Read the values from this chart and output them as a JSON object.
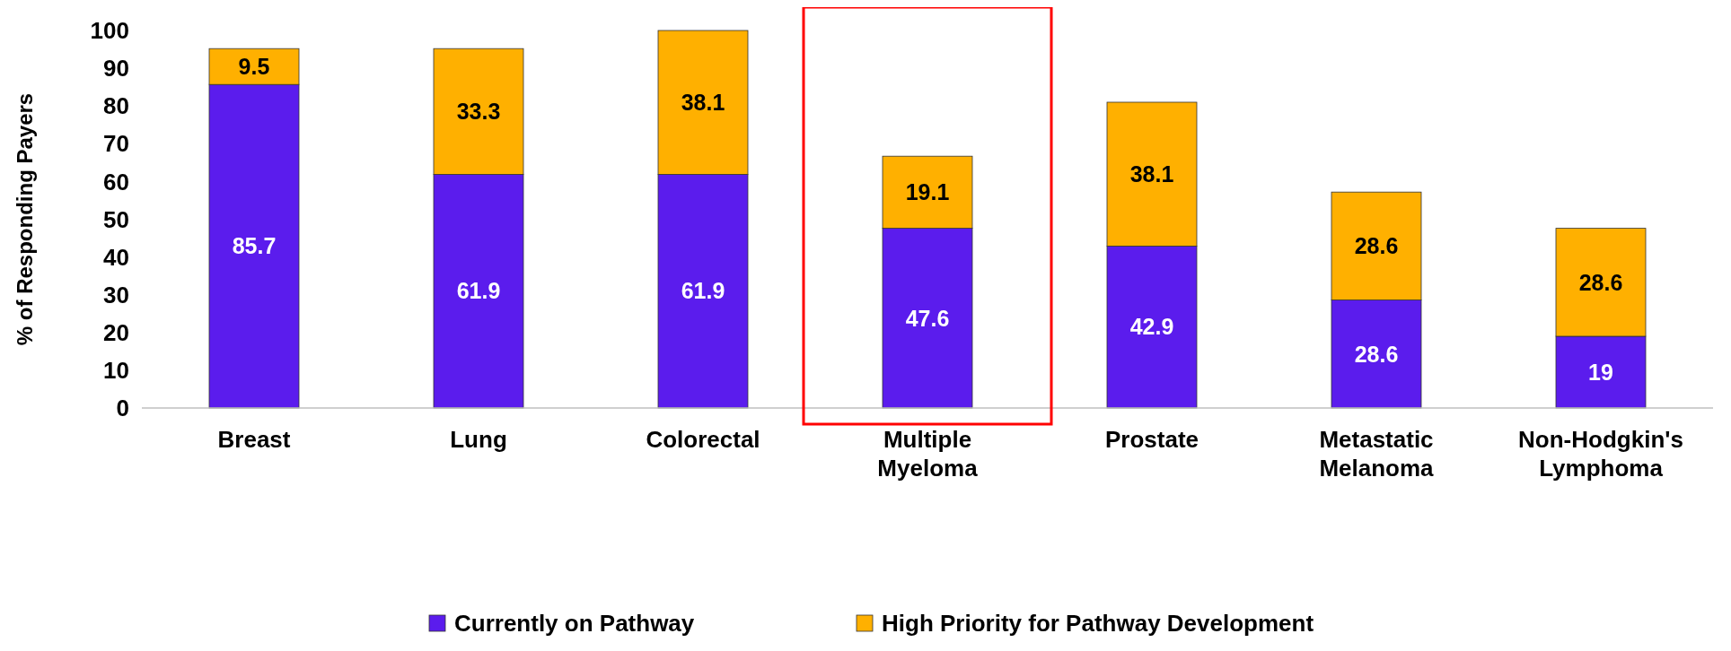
{
  "chart_data": {
    "type": "bar",
    "stacked": true,
    "ylabel": "% of Responding Payers",
    "categories": [
      "Breast",
      "Lung",
      "Colorectal",
      "Multiple Myeloma",
      "Prostate",
      "Metastatic Melanoma",
      "Non-Hodgkin's Lymphoma"
    ],
    "series": [
      {
        "name": "Currently on Pathway",
        "color": "#5b1ced",
        "values": [
          85.7,
          61.9,
          61.9,
          47.6,
          42.9,
          28.6,
          19
        ]
      },
      {
        "name": "High Priority for Pathway Development",
        "color": "#ffb000",
        "values": [
          9.5,
          33.3,
          38.1,
          19.1,
          38.1,
          28.6,
          28.6
        ]
      }
    ],
    "ylim": [
      0,
      100
    ],
    "yticks": [
      0,
      10,
      20,
      30,
      40,
      50,
      60,
      70,
      80,
      90,
      100
    ],
    "grid": false,
    "legend": "bottom",
    "data_labels": true
  }
}
